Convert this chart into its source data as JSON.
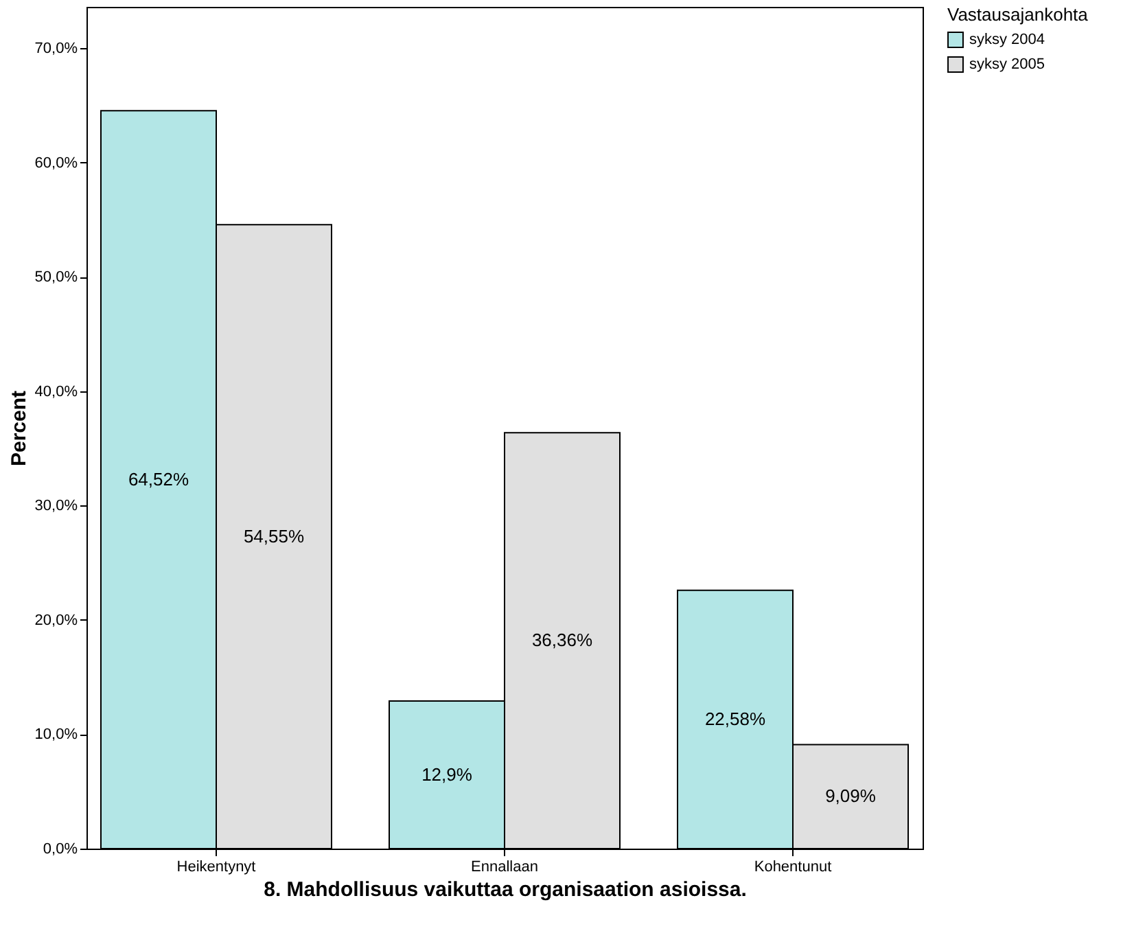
{
  "chart_data": {
    "type": "bar",
    "xlabel": "8. Mahdollisuus vaikuttaa organisaation asioissa.",
    "ylabel": "Percent",
    "legend_title": "Vastausajankohta",
    "legend": "top right",
    "grid": false,
    "categories": [
      "Heikentynyt",
      "Ennallaan",
      "Kohentunut"
    ],
    "series": [
      {
        "name": "syksy 2004",
        "color": "#b3e6e6",
        "values": [
          64.52,
          12.9,
          22.58
        ],
        "value_labels": [
          "64,52%",
          "12,9%",
          "22,58%"
        ]
      },
      {
        "name": "syksy 2005",
        "color": "#e0e0e0",
        "values": [
          54.55,
          36.36,
          9.09
        ],
        "value_labels": [
          "54,55%",
          "36,36%",
          "9,09%"
        ]
      }
    ],
    "ylim": [
      0,
      73.6
    ],
    "yticks": [
      {
        "value": 0,
        "label": "0,0%"
      },
      {
        "value": 10,
        "label": "10,0%"
      },
      {
        "value": 20,
        "label": "20,0%"
      },
      {
        "value": 30,
        "label": "30,0%"
      },
      {
        "value": 40,
        "label": "40,0%"
      },
      {
        "value": 50,
        "label": "50,0%"
      },
      {
        "value": 60,
        "label": "60,0%"
      },
      {
        "value": 70,
        "label": "70,0%"
      }
    ]
  }
}
